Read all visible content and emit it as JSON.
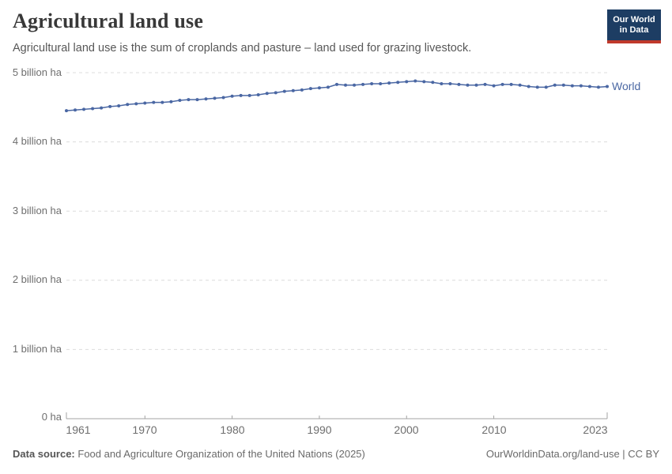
{
  "header": {
    "title": "Agricultural land use",
    "subtitle": "Agricultural land use is the sum of croplands and pasture – land used for grazing livestock.",
    "logo": {
      "line1": "Our World",
      "line2": "in Data",
      "bg_color": "#1d3d63",
      "stripe_color": "#c0392b"
    }
  },
  "chart_data": {
    "type": "line",
    "title": "Agricultural land use",
    "xlabel": "",
    "ylabel": "",
    "unit": "billion ha",
    "xlim": [
      1961,
      2023
    ],
    "ylim": [
      0,
      5
    ],
    "grid": "horizontal-dashed",
    "grid_color": "#dcdcdc",
    "axis_color": "#a3a3a3",
    "legend_position": "end-of-line",
    "yticks": [
      {
        "value": 5,
        "label": "5 billion ha"
      },
      {
        "value": 4,
        "label": "4 billion ha"
      },
      {
        "value": 3,
        "label": "3 billion ha"
      },
      {
        "value": 2,
        "label": "2 billion ha"
      },
      {
        "value": 1,
        "label": "1 billion ha"
      },
      {
        "value": 0,
        "label": "0 ha"
      }
    ],
    "xticks": [
      {
        "year": 1961,
        "label": "1961"
      },
      {
        "year": 1970,
        "label": "1970"
      },
      {
        "year": 1980,
        "label": "1980"
      },
      {
        "year": 1990,
        "label": "1990"
      },
      {
        "year": 2000,
        "label": "2000"
      },
      {
        "year": 2010,
        "label": "2010"
      },
      {
        "year": 2023,
        "label": "2023"
      }
    ],
    "series": [
      {
        "name": "World",
        "color": "#4a67a3",
        "x": [
          1961,
          1962,
          1963,
          1964,
          1965,
          1966,
          1967,
          1968,
          1969,
          1970,
          1971,
          1972,
          1973,
          1974,
          1975,
          1976,
          1977,
          1978,
          1979,
          1980,
          1981,
          1982,
          1983,
          1984,
          1985,
          1986,
          1987,
          1988,
          1989,
          1990,
          1991,
          1992,
          1993,
          1994,
          1995,
          1996,
          1997,
          1998,
          1999,
          2000,
          2001,
          2002,
          2003,
          2004,
          2005,
          2006,
          2007,
          2008,
          2009,
          2010,
          2011,
          2012,
          2013,
          2014,
          2015,
          2016,
          2017,
          2018,
          2019,
          2020,
          2021,
          2022,
          2023
        ],
        "values": [
          4.45,
          4.46,
          4.47,
          4.48,
          4.49,
          4.51,
          4.52,
          4.54,
          4.55,
          4.56,
          4.57,
          4.57,
          4.58,
          4.6,
          4.61,
          4.61,
          4.62,
          4.63,
          4.64,
          4.66,
          4.67,
          4.67,
          4.68,
          4.7,
          4.71,
          4.73,
          4.74,
          4.75,
          4.77,
          4.78,
          4.79,
          4.83,
          4.82,
          4.82,
          4.83,
          4.84,
          4.84,
          4.85,
          4.86,
          4.87,
          4.88,
          4.87,
          4.86,
          4.84,
          4.84,
          4.83,
          4.82,
          4.82,
          4.83,
          4.81,
          4.83,
          4.83,
          4.82,
          4.8,
          4.79,
          4.79,
          4.82,
          4.82,
          4.81,
          4.81,
          4.8,
          4.79,
          4.8
        ]
      }
    ]
  },
  "footer": {
    "source_label": "Data source:",
    "source_text": "Food and Agriculture Organization of the United Nations (2025)",
    "attribution": "OurWorldinData.org/land-use | CC BY"
  }
}
